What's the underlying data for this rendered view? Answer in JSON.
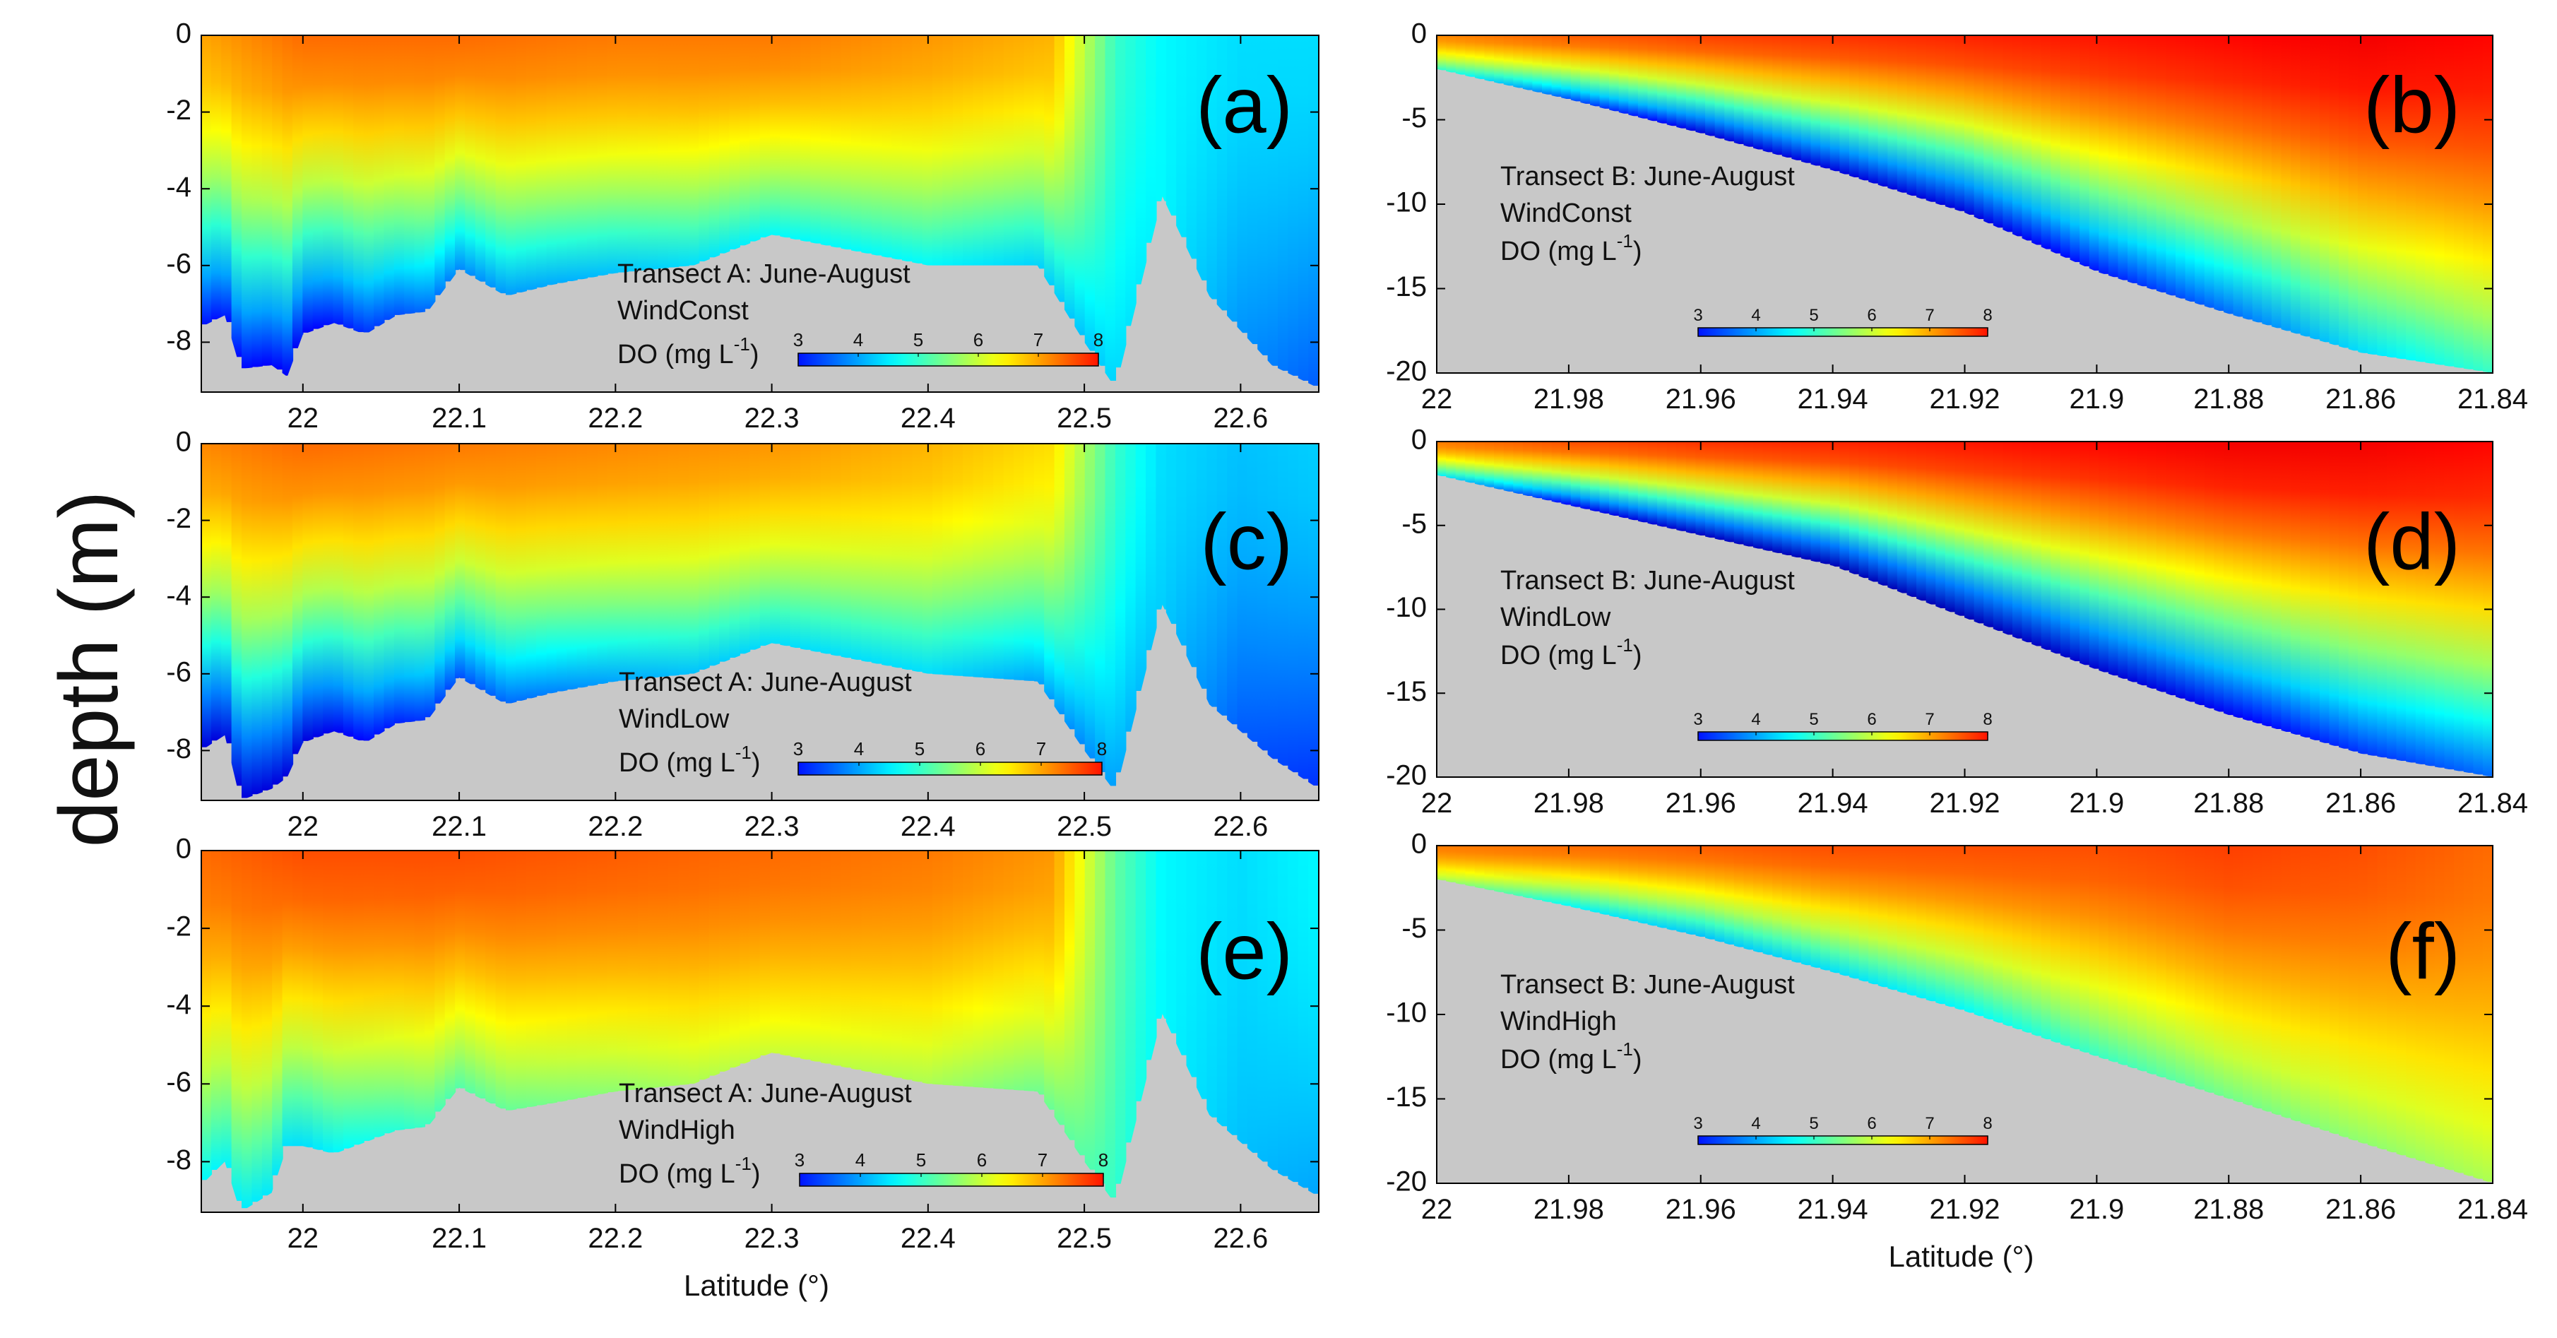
{
  "figure": {
    "ylabel": "depth (m)",
    "colormap_stops": [
      "#00008f",
      "#0000ff",
      "#0080ff",
      "#00ffff",
      "#80ff80",
      "#ffff00",
      "#ff8000",
      "#ff0000",
      "#800000"
    ],
    "land_color": "#c8c8c8"
  },
  "chart_data": [
    {
      "id": "a",
      "type": "heatmap",
      "panel_label": "(a)",
      "transect": "A",
      "title_line1": "Transect A: June-August",
      "title_line2": "WindConst",
      "colorbar_label_main": "DO (mg L",
      "colorbar_label_sup": "-1",
      "colorbar_label_end": ")",
      "colorbar_ticks": [
        "3",
        "4",
        "5",
        "6",
        "7",
        "8"
      ],
      "colorbar_range": [
        3,
        8
      ],
      "xlim": [
        21.935,
        22.65
      ],
      "xticks": [
        "22",
        "22.1",
        "22.2",
        "22.3",
        "22.4",
        "22.5",
        "22.6"
      ],
      "ylim": [
        -9.3,
        0
      ],
      "yticks": [
        "0",
        "-2",
        "-4",
        "-6",
        "-8"
      ],
      "xlabel": "",
      "bottom_profile": [
        [
          21.935,
          -7.6
        ],
        [
          21.95,
          -7.3
        ],
        [
          21.96,
          -8.7
        ],
        [
          21.98,
          -8.6
        ],
        [
          21.99,
          -8.9
        ],
        [
          22.0,
          -7.8
        ],
        [
          22.02,
          -7.5
        ],
        [
          22.04,
          -7.8
        ],
        [
          22.06,
          -7.3
        ],
        [
          22.08,
          -7.2
        ],
        [
          22.1,
          -6.1
        ],
        [
          22.13,
          -6.8
        ],
        [
          22.16,
          -6.5
        ],
        [
          22.2,
          -6.2
        ],
        [
          22.25,
          -6.0
        ],
        [
          22.3,
          -5.2
        ],
        [
          22.35,
          -5.6
        ],
        [
          22.4,
          -6.0
        ],
        [
          22.47,
          -6.0
        ],
        [
          22.5,
          -8.0
        ],
        [
          22.52,
          -9.2
        ],
        [
          22.55,
          -4.2
        ],
        [
          22.58,
          -6.8
        ],
        [
          22.62,
          -8.6
        ],
        [
          22.65,
          -9.2
        ]
      ],
      "surface_do": [
        [
          21.935,
          7.0
        ],
        [
          22.0,
          7.4
        ],
        [
          22.1,
          7.4
        ],
        [
          22.2,
          7.3
        ],
        [
          22.3,
          7.3
        ],
        [
          22.4,
          7.1
        ],
        [
          22.48,
          6.9
        ],
        [
          22.52,
          5.0
        ],
        [
          22.55,
          4.6
        ],
        [
          22.6,
          4.4
        ],
        [
          22.65,
          4.4
        ]
      ],
      "bottom_do": [
        [
          21.935,
          3.0
        ],
        [
          22.0,
          2.8
        ],
        [
          22.1,
          3.8
        ],
        [
          22.2,
          4.2
        ],
        [
          22.3,
          4.6
        ],
        [
          22.4,
          4.6
        ],
        [
          22.5,
          4.2
        ],
        [
          22.55,
          4.6
        ],
        [
          22.6,
          3.9
        ],
        [
          22.65,
          3.5
        ]
      ]
    },
    {
      "id": "b",
      "type": "heatmap",
      "panel_label": "(b)",
      "transect": "B",
      "title_line1": "Transect B: June-August",
      "title_line2": "WindConst",
      "colorbar_label_main": "DO (mg L",
      "colorbar_label_sup": "-1",
      "colorbar_label_end": ")",
      "colorbar_ticks": [
        "3",
        "4",
        "5",
        "6",
        "7",
        "8"
      ],
      "colorbar_range": [
        3,
        8
      ],
      "xlim": [
        22.0,
        21.84
      ],
      "xticks": [
        "22",
        "21.98",
        "21.96",
        "21.94",
        "21.92",
        "21.9",
        "21.88",
        "21.86",
        "21.84"
      ],
      "ylim": [
        -20,
        0
      ],
      "yticks": [
        "0",
        "-5",
        "-10",
        "-15",
        "-20"
      ],
      "xlabel": "",
      "bottom_profile": [
        [
          22.0,
          -2.0
        ],
        [
          21.98,
          -3.8
        ],
        [
          21.96,
          -5.8
        ],
        [
          21.94,
          -8.0
        ],
        [
          21.92,
          -10.5
        ],
        [
          21.9,
          -14.0
        ],
        [
          21.88,
          -16.5
        ],
        [
          21.86,
          -18.8
        ],
        [
          21.84,
          -20.0
        ]
      ],
      "surface_do": [
        [
          22.0,
          7.2
        ],
        [
          21.98,
          7.5
        ],
        [
          21.96,
          7.7
        ],
        [
          21.94,
          7.8
        ],
        [
          21.92,
          7.9
        ],
        [
          21.9,
          8.0
        ],
        [
          21.88,
          8.1
        ],
        [
          21.86,
          8.2
        ],
        [
          21.84,
          8.1
        ]
      ],
      "bottom_do": [
        [
          22.0,
          5.0
        ],
        [
          21.98,
          3.4
        ],
        [
          21.96,
          2.6
        ],
        [
          21.94,
          2.6
        ],
        [
          21.92,
          2.6
        ],
        [
          21.9,
          3.0
        ],
        [
          21.88,
          3.6
        ],
        [
          21.86,
          4.4
        ],
        [
          21.84,
          5.0
        ]
      ]
    },
    {
      "id": "c",
      "type": "heatmap",
      "panel_label": "(c)",
      "transect": "A",
      "title_line1": "Transect A: June-August",
      "title_line2": "WindLow",
      "colorbar_label_main": "DO (mg L",
      "colorbar_label_sup": "-1",
      "colorbar_label_end": ")",
      "colorbar_ticks": [
        "3",
        "4",
        "5",
        "6",
        "7",
        "8"
      ],
      "colorbar_range": [
        3,
        8
      ],
      "xlim": [
        21.935,
        22.65
      ],
      "xticks": [
        "22",
        "22.1",
        "22.2",
        "22.3",
        "22.4",
        "22.5",
        "22.6"
      ],
      "ylim": [
        -9.3,
        0
      ],
      "yticks": [
        "0",
        "-2",
        "-4",
        "-6",
        "-8"
      ],
      "xlabel": "",
      "bottom_profile": [
        [
          21.935,
          -8.0
        ],
        [
          21.95,
          -7.6
        ],
        [
          21.96,
          -9.3
        ],
        [
          21.98,
          -9.0
        ],
        [
          21.99,
          -8.7
        ],
        [
          22.0,
          -7.8
        ],
        [
          22.02,
          -7.5
        ],
        [
          22.04,
          -7.8
        ],
        [
          22.06,
          -7.3
        ],
        [
          22.08,
          -7.2
        ],
        [
          22.1,
          -6.1
        ],
        [
          22.13,
          -6.8
        ],
        [
          22.16,
          -6.5
        ],
        [
          22.2,
          -6.2
        ],
        [
          22.25,
          -6.0
        ],
        [
          22.3,
          -5.2
        ],
        [
          22.35,
          -5.6
        ],
        [
          22.4,
          -6.0
        ],
        [
          22.47,
          -6.2
        ],
        [
          22.5,
          -8.0
        ],
        [
          22.52,
          -9.1
        ],
        [
          22.55,
          -4.2
        ],
        [
          22.58,
          -6.8
        ],
        [
          22.62,
          -8.2
        ],
        [
          22.65,
          -9.0
        ]
      ],
      "surface_do": [
        [
          21.935,
          7.2
        ],
        [
          22.0,
          7.4
        ],
        [
          22.1,
          7.3
        ],
        [
          22.2,
          7.2
        ],
        [
          22.3,
          7.1
        ],
        [
          22.4,
          6.9
        ],
        [
          22.48,
          6.6
        ],
        [
          22.52,
          5.0
        ],
        [
          22.55,
          4.4
        ],
        [
          22.6,
          4.2
        ],
        [
          22.65,
          4.3
        ]
      ],
      "bottom_do": [
        [
          21.935,
          2.6
        ],
        [
          22.0,
          2.6
        ],
        [
          22.1,
          3.4
        ],
        [
          22.2,
          4.0
        ],
        [
          22.3,
          4.4
        ],
        [
          22.4,
          4.4
        ],
        [
          22.5,
          3.8
        ],
        [
          22.55,
          4.3
        ],
        [
          22.6,
          3.5
        ],
        [
          22.65,
          3.2
        ]
      ]
    },
    {
      "id": "d",
      "type": "heatmap",
      "panel_label": "(d)",
      "transect": "B",
      "title_line1": "Transect B: June-August",
      "title_line2": "WindLow",
      "colorbar_label_main": "DO (mg L",
      "colorbar_label_sup": "-1",
      "colorbar_label_end": ")",
      "colorbar_ticks": [
        "3",
        "4",
        "5",
        "6",
        "7",
        "8"
      ],
      "colorbar_range": [
        3,
        8
      ],
      "xlim": [
        22.0,
        21.84
      ],
      "xticks": [
        "22",
        "21.98",
        "21.96",
        "21.94",
        "21.92",
        "21.9",
        "21.88",
        "21.86",
        "21.84"
      ],
      "ylim": [
        -20,
        0
      ],
      "yticks": [
        "0",
        "-5",
        "-10",
        "-15",
        "-20"
      ],
      "xlabel": "",
      "bottom_profile": [
        [
          22.0,
          -2.0
        ],
        [
          21.98,
          -3.8
        ],
        [
          21.96,
          -5.6
        ],
        [
          21.94,
          -7.4
        ],
        [
          21.92,
          -10.5
        ],
        [
          21.9,
          -13.6
        ],
        [
          21.88,
          -16.3
        ],
        [
          21.86,
          -18.6
        ],
        [
          21.84,
          -20.0
        ]
      ],
      "surface_do": [
        [
          22.0,
          7.3
        ],
        [
          21.98,
          7.6
        ],
        [
          21.96,
          7.8
        ],
        [
          21.94,
          7.9
        ],
        [
          21.92,
          8.0
        ],
        [
          21.9,
          8.1
        ],
        [
          21.88,
          8.2
        ],
        [
          21.86,
          8.2
        ],
        [
          21.84,
          8.1
        ]
      ],
      "bottom_do": [
        [
          22.0,
          4.6
        ],
        [
          21.98,
          2.8
        ],
        [
          21.96,
          2.4
        ],
        [
          21.94,
          2.3
        ],
        [
          21.92,
          2.3
        ],
        [
          21.9,
          2.5
        ],
        [
          21.88,
          2.8
        ],
        [
          21.86,
          3.2
        ],
        [
          21.84,
          3.6
        ]
      ]
    },
    {
      "id": "e",
      "type": "heatmap",
      "panel_label": "(e)",
      "transect": "A",
      "title_line1": "Transect A: June-August",
      "title_line2": "WindHigh",
      "colorbar_label_main": "DO (mg L",
      "colorbar_label_sup": "-1",
      "colorbar_label_end": ")",
      "colorbar_ticks": [
        "3",
        "4",
        "5",
        "6",
        "7",
        "8"
      ],
      "colorbar_range": [
        3,
        8
      ],
      "xlim": [
        21.935,
        22.65
      ],
      "xticks": [
        "22",
        "22.1",
        "22.2",
        "22.3",
        "22.4",
        "22.5",
        "22.6"
      ],
      "ylim": [
        -9.3,
        0
      ],
      "yticks": [
        "0",
        "-2",
        "-4",
        "-6",
        "-8"
      ],
      "xlabel": "Latitude (°)",
      "bottom_profile": [
        [
          21.935,
          -8.6
        ],
        [
          21.95,
          -8.0
        ],
        [
          21.96,
          -9.3
        ],
        [
          21.98,
          -8.8
        ],
        [
          21.99,
          -7.6
        ],
        [
          22.0,
          -7.6
        ],
        [
          22.02,
          -7.8
        ],
        [
          22.04,
          -7.5
        ],
        [
          22.06,
          -7.2
        ],
        [
          22.08,
          -7.1
        ],
        [
          22.1,
          -6.1
        ],
        [
          22.13,
          -6.7
        ],
        [
          22.16,
          -6.5
        ],
        [
          22.2,
          -6.2
        ],
        [
          22.25,
          -6.0
        ],
        [
          22.3,
          -5.2
        ],
        [
          22.35,
          -5.6
        ],
        [
          22.4,
          -6.0
        ],
        [
          22.47,
          -6.2
        ],
        [
          22.5,
          -8.0
        ],
        [
          22.52,
          -9.1
        ],
        [
          22.55,
          -4.2
        ],
        [
          22.58,
          -6.8
        ],
        [
          22.62,
          -8.2
        ],
        [
          22.65,
          -8.9
        ]
      ],
      "surface_do": [
        [
          21.935,
          7.4
        ],
        [
          22.0,
          7.6
        ],
        [
          22.1,
          7.6
        ],
        [
          22.2,
          7.5
        ],
        [
          22.3,
          7.4
        ],
        [
          22.4,
          7.3
        ],
        [
          22.48,
          7.1
        ],
        [
          22.52,
          5.3
        ],
        [
          22.55,
          4.6
        ],
        [
          22.6,
          4.4
        ],
        [
          22.65,
          4.6
        ]
      ],
      "bottom_do": [
        [
          21.935,
          4.6
        ],
        [
          22.0,
          4.4
        ],
        [
          22.1,
          5.2
        ],
        [
          22.2,
          5.6
        ],
        [
          22.3,
          6.0
        ],
        [
          22.4,
          5.8
        ],
        [
          22.5,
          5.2
        ],
        [
          22.55,
          4.6
        ],
        [
          22.6,
          4.2
        ],
        [
          22.65,
          4.0
        ]
      ]
    },
    {
      "id": "f",
      "type": "heatmap",
      "panel_label": "(f)",
      "transect": "B",
      "title_line1": "Transect B: June-August",
      "title_line2": "WindHigh",
      "colorbar_label_main": "DO (mg L",
      "colorbar_label_sup": "-1",
      "colorbar_label_end": ")",
      "colorbar_ticks": [
        "3",
        "4",
        "5",
        "6",
        "7",
        "8"
      ],
      "colorbar_range": [
        3,
        8
      ],
      "xlim": [
        22.0,
        21.84
      ],
      "xticks": [
        "22",
        "21.98",
        "21.96",
        "21.94",
        "21.92",
        "21.9",
        "21.88",
        "21.86",
        "21.84"
      ],
      "ylim": [
        -20,
        0
      ],
      "yticks": [
        "0",
        "-5",
        "-10",
        "-15",
        "-20"
      ],
      "xlabel": "Latitude (°)",
      "bottom_profile": [
        [
          22.0,
          -2.0
        ],
        [
          21.98,
          -3.6
        ],
        [
          21.96,
          -5.4
        ],
        [
          21.94,
          -7.5
        ],
        [
          21.92,
          -9.8
        ],
        [
          21.9,
          -12.5
        ],
        [
          21.88,
          -15.0
        ],
        [
          21.86,
          -17.6
        ],
        [
          21.84,
          -20.0
        ]
      ],
      "surface_do": [
        [
          22.0,
          7.3
        ],
        [
          21.98,
          7.4
        ],
        [
          21.96,
          7.5
        ],
        [
          21.94,
          7.6
        ],
        [
          21.92,
          7.6
        ],
        [
          21.9,
          7.6
        ],
        [
          21.88,
          7.7
        ],
        [
          21.86,
          7.6
        ],
        [
          21.84,
          7.4
        ]
      ],
      "bottom_do": [
        [
          22.0,
          5.8
        ],
        [
          21.98,
          4.6
        ],
        [
          21.96,
          4.2
        ],
        [
          21.94,
          4.4
        ],
        [
          21.92,
          4.6
        ],
        [
          21.9,
          5.0
        ],
        [
          21.88,
          5.4
        ],
        [
          21.86,
          5.6
        ],
        [
          21.84,
          5.8
        ]
      ]
    }
  ]
}
